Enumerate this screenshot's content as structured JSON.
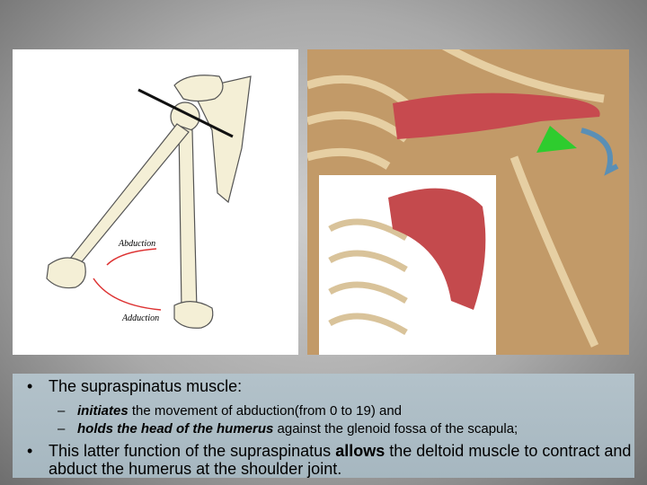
{
  "figure": {
    "labels": [
      "Abduction",
      "Adduction"
    ]
  },
  "bullets": [
    {
      "text": "The supraspinatus muscle:",
      "items": [
        [
          "initiates",
          "the movement of abduction(from 0 to 19) and"
        ],
        [
          "holds the head of the humerus",
          "against the glenoid fossa of the scapula;"
        ]
      ]
    },
    [
      "This latter function of the supraspinatus",
      "allows",
      "the deltoid muscle to contract and abduct the humerus at the shoulder joint."
    ]
  ]
}
